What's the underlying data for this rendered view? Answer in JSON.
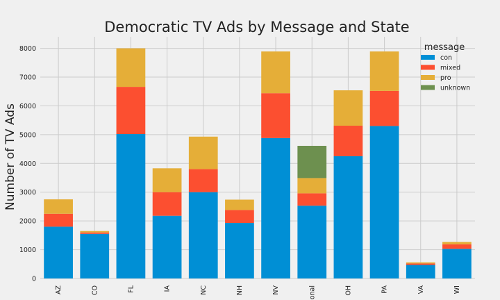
{
  "chart_data": {
    "type": "bar",
    "stacked": true,
    "title": "Democratic TV Ads by Message and State",
    "xlabel": "",
    "ylabel": "Number of TV Ads",
    "ylim": [
      0,
      8400
    ],
    "yticks": [
      0,
      1000,
      2000,
      3000,
      4000,
      5000,
      6000,
      7000,
      8000
    ],
    "grid": true,
    "categories": [
      "AZ",
      "CO",
      "FL",
      "IA",
      "NC",
      "NH",
      "NV",
      "national",
      "OH",
      "PA",
      "VA",
      "WI"
    ],
    "category_tick_labels": [
      "AZ",
      "CO",
      "FL",
      "IA",
      "NC",
      "NH",
      "NV",
      "ional",
      "OH",
      "PA",
      "VA",
      "WI"
    ],
    "legend": {
      "title": "message",
      "placement": "top-right"
    },
    "series": [
      {
        "name": "con",
        "color": "#008fd5",
        "values": [
          1800,
          1550,
          5020,
          2180,
          3000,
          1930,
          4880,
          2530,
          4250,
          5300,
          470,
          1030
        ]
      },
      {
        "name": "mixed",
        "color": "#fc4f30",
        "values": [
          450,
          50,
          1640,
          820,
          800,
          450,
          1560,
          430,
          1060,
          1220,
          50,
          160
        ]
      },
      {
        "name": "pro",
        "color": "#e5ae38",
        "values": [
          500,
          50,
          1340,
          830,
          1130,
          360,
          1450,
          530,
          1230,
          1370,
          40,
          80
        ]
      },
      {
        "name": "unknown",
        "color": "#6d904f",
        "values": [
          0,
          0,
          0,
          0,
          0,
          0,
          0,
          1120,
          0,
          0,
          0,
          0
        ]
      }
    ]
  }
}
